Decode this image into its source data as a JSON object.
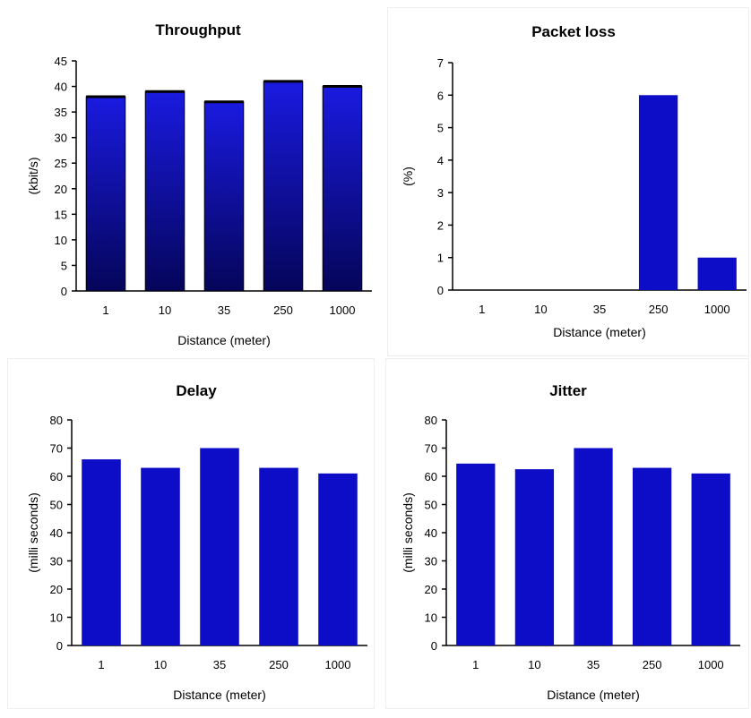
{
  "chart_data": [
    {
      "type": "bar",
      "title": "Throughput",
      "xlabel": "Distance (meter)",
      "ylabel": "(kbit/s)",
      "categories": [
        "1",
        "10",
        "35",
        "250",
        "1000"
      ],
      "values": [
        38,
        39,
        37,
        41,
        40
      ],
      "ylim": [
        0,
        45
      ],
      "yticks": [
        0,
        5,
        10,
        15,
        20,
        25,
        30,
        35,
        40,
        45
      ],
      "grid": false,
      "bar_style": "gradient",
      "color": "#1111cc"
    },
    {
      "type": "bar",
      "title": "Packet loss",
      "xlabel": "Distance (meter)",
      "ylabel": "(%)",
      "categories": [
        "1",
        "10",
        "35",
        "250",
        "1000"
      ],
      "values": [
        0,
        0,
        0,
        6,
        1
      ],
      "ylim": [
        0,
        7
      ],
      "yticks": [
        0,
        1,
        2,
        3,
        4,
        5,
        6,
        7
      ],
      "grid": false,
      "bar_style": "solid",
      "color": "#0d0dc8"
    },
    {
      "type": "bar",
      "title": "Delay",
      "xlabel": "Distance (meter)",
      "ylabel": "(milli seconds)",
      "categories": [
        "1",
        "10",
        "35",
        "250",
        "1000"
      ],
      "values": [
        66,
        63,
        70,
        63,
        61
      ],
      "ylim": [
        0,
        80
      ],
      "yticks": [
        0,
        10,
        20,
        30,
        40,
        50,
        60,
        70,
        80
      ],
      "grid": false,
      "bar_style": "solid",
      "color": "#0d0dc8"
    },
    {
      "type": "bar",
      "title": "Jitter",
      "xlabel": "Distance (meter)",
      "ylabel": "(milli seconds)",
      "categories": [
        "1",
        "10",
        "35",
        "250",
        "1000"
      ],
      "values": [
        64.5,
        62.5,
        70,
        63,
        61
      ],
      "ylim": [
        0,
        80
      ],
      "yticks": [
        0,
        10,
        20,
        30,
        40,
        50,
        60,
        70,
        80
      ],
      "grid": false,
      "bar_style": "solid",
      "color": "#0d0dc8"
    }
  ]
}
